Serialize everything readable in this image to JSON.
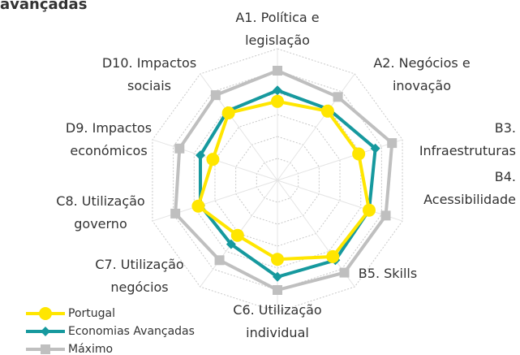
{
  "chart_data": {
    "type": "radar",
    "title": "avançadas",
    "categories": [
      "A1. Política e\nlegislação",
      "A2. Negócios e\ninovação",
      "B3.\nInfraestruturas",
      "B4.\nAcessibilidade",
      "B5. Skills",
      "C6. Utilização\nindividual",
      "C7. Utilização\nnegócios",
      "C8. Utilização\ngoverno",
      "D9. Impactos\neconómicos",
      "D10. Impactos\nsociais"
    ],
    "series": [
      {
        "name": "Portugal",
        "color": "#ffe600",
        "marker": "circle",
        "values": [
          3.6,
          3.9,
          3.9,
          4.4,
          4.3,
          3.6,
          3.1,
          3.8,
          3.1,
          3.8
        ]
      },
      {
        "name": "Economias Avançadas",
        "color": "#16999e",
        "marker": "diamond",
        "values": [
          4.1,
          4.0,
          4.7,
          4.4,
          4.5,
          4.4,
          3.6,
          3.7,
          3.7,
          3.9
        ]
      },
      {
        "name": "Máximo",
        "color": "#bfbfbf",
        "marker": "square",
        "values": [
          5.0,
          4.7,
          5.5,
          5.2,
          5.2,
          5.0,
          4.5,
          4.9,
          4.7,
          4.8
        ]
      }
    ],
    "ylim": [
      0,
      6
    ],
    "yticks": [
      0,
      1,
      2,
      3,
      4,
      5,
      6
    ],
    "grid": true,
    "legend": "bottom-left"
  }
}
